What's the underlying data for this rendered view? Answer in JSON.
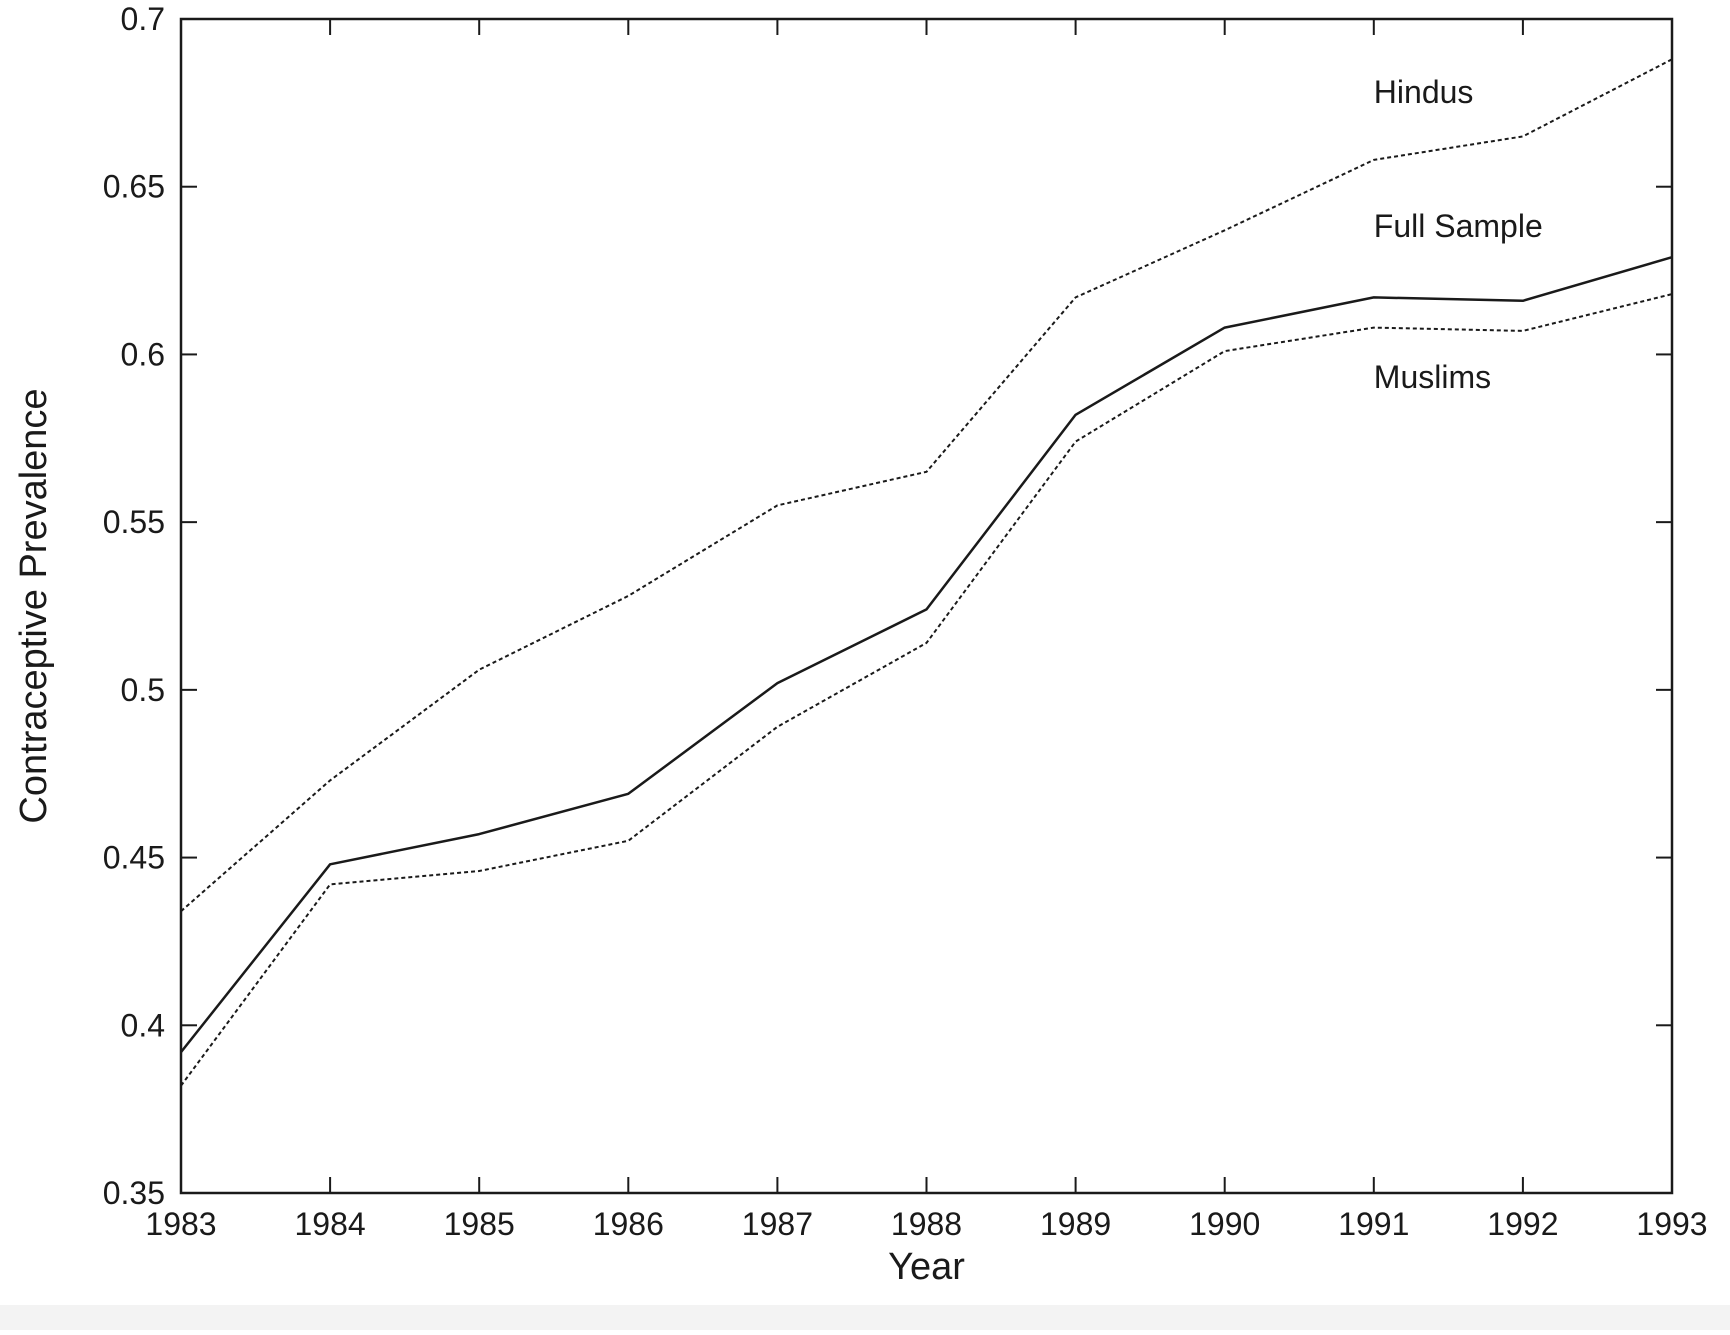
{
  "chart_data": {
    "type": "line",
    "title": "",
    "xlabel": "Year",
    "ylabel": "Contraceptive Prevalence",
    "x": [
      1983,
      1984,
      1985,
      1986,
      1987,
      1988,
      1989,
      1990,
      1991,
      1992,
      1993
    ],
    "xlim": [
      1983,
      1993
    ],
    "ylim": [
      0.35,
      0.7
    ],
    "x_ticks": [
      "1983",
      "1984",
      "1985",
      "1986",
      "1987",
      "1988",
      "1989",
      "1990",
      "1991",
      "1992",
      "1993"
    ],
    "y_ticks": [
      "0.35",
      "0.4",
      "0.45",
      "0.5",
      "0.55",
      "0.6",
      "0.65",
      "0.7"
    ],
    "grid": false,
    "series": [
      {
        "name": "Hindus",
        "style": "dotted",
        "color": "#1a1a1a",
        "values": [
          0.434,
          0.473,
          0.506,
          0.528,
          0.555,
          0.565,
          0.617,
          0.637,
          0.658,
          0.665,
          0.688
        ]
      },
      {
        "name": "Full Sample",
        "style": "solid",
        "color": "#1a1a1a",
        "values": [
          0.392,
          0.448,
          0.457,
          0.469,
          0.502,
          0.524,
          0.582,
          0.608,
          0.617,
          0.616,
          0.629
        ]
      },
      {
        "name": "Muslims",
        "style": "dotted",
        "color": "#1a1a1a",
        "values": [
          0.382,
          0.442,
          0.446,
          0.455,
          0.489,
          0.514,
          0.574,
          0.601,
          0.608,
          0.607,
          0.618
        ]
      }
    ]
  }
}
